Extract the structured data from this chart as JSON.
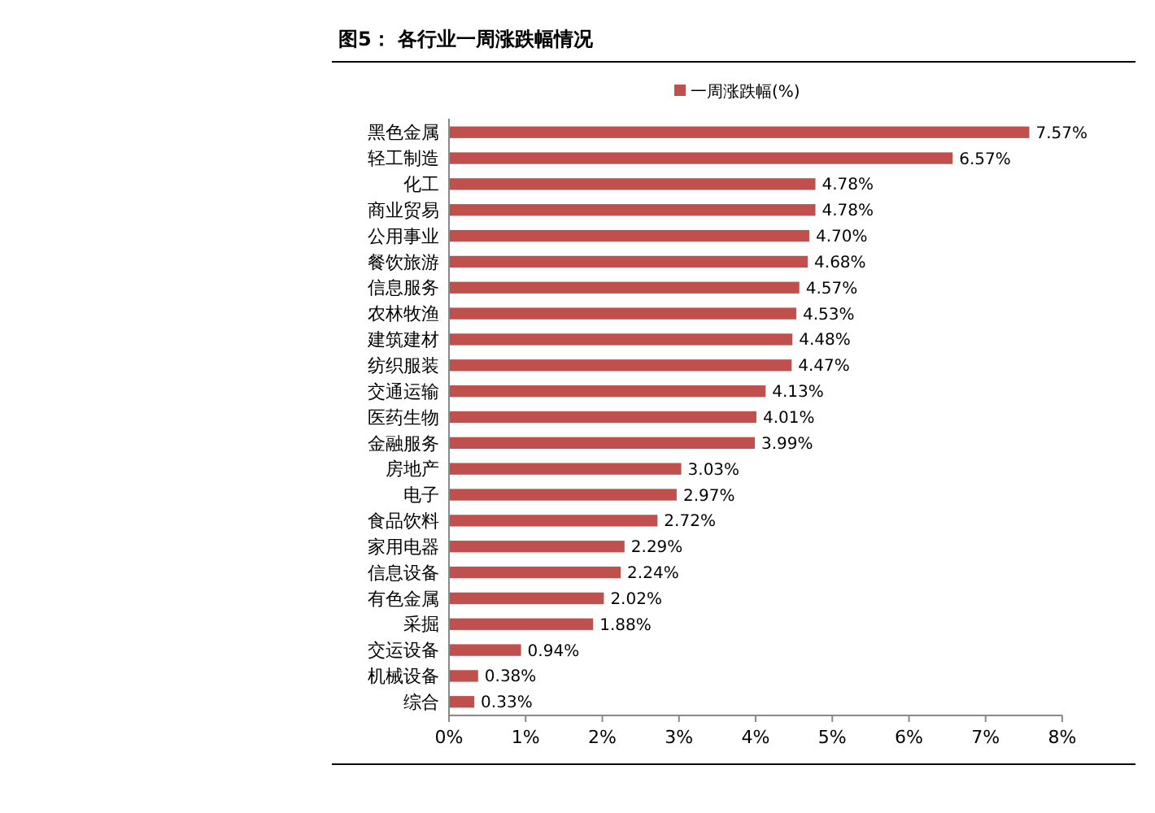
{
  "chart_data": {
    "type": "bar",
    "orientation": "horizontal",
    "title": "图5：   各行业一周涨跌幅情况",
    "categories": [
      "黑色金属",
      "轻工制造",
      "化工",
      "商业贸易",
      "公用事业",
      "餐饮旅游",
      "信息服务",
      "农林牧渔",
      "建筑建材",
      "纺织服装",
      "交通运输",
      "医药生物",
      "金融服务",
      "房地产",
      "电子",
      "食品饮料",
      "家用电器",
      "信息设备",
      "有色金属",
      "采掘",
      "交运设备",
      "机械设备",
      "综合"
    ],
    "series": [
      {
        "name": "一周涨跌幅(%)",
        "color": "#c0504d",
        "values": [
          7.57,
          6.57,
          4.78,
          4.78,
          4.7,
          4.68,
          4.57,
          4.53,
          4.48,
          4.47,
          4.13,
          4.01,
          3.99,
          3.03,
          2.97,
          2.72,
          2.29,
          2.24,
          2.02,
          1.88,
          0.94,
          0.38,
          0.33
        ],
        "value_labels": [
          "7.57%",
          "6.57%",
          "4.78%",
          "4.78%",
          "4.70%",
          "4.68%",
          "4.57%",
          "4.53%",
          "4.48%",
          "4.47%",
          "4.13%",
          "4.01%",
          "3.99%",
          "3.03%",
          "2.97%",
          "2.72%",
          "2.29%",
          "2.24%",
          "2.02%",
          "1.88%",
          "0.94%",
          "0.38%",
          "0.33%"
        ]
      }
    ],
    "xlim": [
      0,
      8
    ],
    "xticks": [
      {
        "value": 0,
        "label": "0%"
      },
      {
        "value": 1,
        "label": "1%"
      },
      {
        "value": 2,
        "label": "2%"
      },
      {
        "value": 3,
        "label": "3%"
      },
      {
        "value": 4,
        "label": "4%"
      },
      {
        "value": 5,
        "label": "5%"
      },
      {
        "value": 6,
        "label": "6%"
      },
      {
        "value": 7,
        "label": "7%"
      },
      {
        "value": 8,
        "label": "8%"
      }
    ],
    "legend": "top",
    "grid": false
  }
}
